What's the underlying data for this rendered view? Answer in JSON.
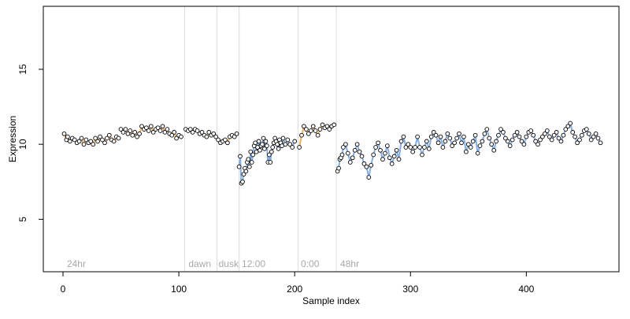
{
  "chart_data": {
    "type": "scatter",
    "title": "",
    "xlabel": "Sample index",
    "ylabel": "Expression",
    "xlim": [
      -17,
      480
    ],
    "ylim": [
      1.5,
      19.2
    ],
    "xticks": [
      0,
      100,
      200,
      300,
      400
    ],
    "yticks": [
      5,
      10,
      15
    ],
    "grid": false,
    "colors": {
      "point_fill": "#ffffff",
      "point_stroke": "#000000",
      "highlight_point_fill": "#f5a032",
      "fitted_line_orange": "#f0a040",
      "fitted_line_blue": "#6f9fdc",
      "divider": "#dcdcdc",
      "section_label": "#a8a8a8"
    },
    "dividers": [
      105,
      133,
      152,
      203,
      236
    ],
    "section_labels": [
      {
        "x": 2,
        "text": "24hr"
      },
      {
        "x": 107,
        "text": "dawn"
      },
      {
        "x": 133,
        "text": "dusk"
      },
      {
        "x": 153,
        "text": "12:00"
      },
      {
        "x": 204,
        "text": "0:00"
      },
      {
        "x": 238,
        "text": "48hr"
      }
    ],
    "series": [
      {
        "x": [
          1,
          3,
          4,
          6,
          8,
          10,
          12,
          14,
          16,
          18,
          20,
          22,
          24,
          26,
          28,
          30,
          32,
          34,
          36,
          38,
          40,
          42,
          44,
          46,
          48
        ],
        "y": [
          10.7,
          10.3,
          10.5,
          10.2,
          10.4,
          10.3,
          10.1,
          10.2,
          10.4,
          10.0,
          10.3,
          10.1,
          10.2,
          10.0,
          10.4,
          10.2,
          10.5,
          10.3,
          10.1,
          10.4,
          10.6,
          10.3,
          10.2,
          10.5,
          10.4
        ]
      },
      {
        "x": [
          50,
          52,
          54,
          56,
          58,
          60,
          62,
          64,
          66,
          68,
          70,
          72,
          74,
          76,
          78,
          80,
          82,
          84,
          86,
          88,
          90,
          92,
          94,
          96,
          98,
          100,
          102
        ],
        "y": [
          11.0,
          10.8,
          11.0,
          10.7,
          10.9,
          10.6,
          10.8,
          10.5,
          10.7,
          11.2,
          11.0,
          11.1,
          10.9,
          11.2,
          10.8,
          11.0,
          11.1,
          10.9,
          11.2,
          10.8,
          11.0,
          10.7,
          10.6,
          10.8,
          10.4,
          10.6,
          10.5
        ]
      },
      {
        "x": [
          106,
          108,
          110,
          112,
          114,
          116,
          118,
          120,
          122,
          124,
          126,
          128,
          130,
          132
        ],
        "y": [
          11.0,
          10.9,
          11.0,
          10.8,
          11.0,
          10.9,
          10.7,
          10.8,
          10.6,
          10.5,
          10.8,
          10.6,
          10.7,
          10.5
        ]
      },
      {
        "x": [
          134,
          136,
          138,
          140,
          142,
          144,
          146,
          148,
          150
        ],
        "y": [
          10.3,
          10.1,
          10.2,
          10.3,
          10.1,
          10.5,
          10.6,
          10.5,
          10.7
        ]
      },
      {
        "x": [
          152,
          153,
          154,
          155,
          156,
          157,
          158,
          159,
          160,
          161,
          162,
          163,
          164,
          165,
          166,
          167,
          168,
          169,
          170,
          171,
          172,
          173,
          174,
          175,
          176,
          177,
          178,
          179,
          180,
          181,
          182,
          183,
          184,
          185,
          186,
          187,
          188,
          189,
          190,
          192,
          194,
          196,
          198,
          200
        ],
        "y": [
          8.5,
          9.2,
          7.4,
          7.5,
          8.0,
          8.4,
          8.2,
          8.8,
          9.0,
          8.5,
          9.5,
          8.8,
          9.3,
          9.9,
          10.1,
          9.5,
          9.8,
          10.2,
          9.6,
          9.9,
          10.0,
          10.4,
          9.7,
          10.2,
          9.9,
          8.8,
          9.3,
          8.8,
          9.5,
          9.8,
          10.1,
          10.4,
          10.2,
          10.0,
          9.7,
          10.3,
          10.1,
          9.9,
          10.4,
          10.0,
          10.3,
          10.0,
          9.8,
          10.2
        ]
      },
      {
        "x": [
          204,
          206,
          208,
          210,
          212,
          214,
          216,
          218,
          220,
          222,
          224,
          226,
          228,
          230,
          232,
          234
        ],
        "y": [
          9.8,
          10.6,
          11.2,
          11.0,
          10.7,
          10.9,
          11.2,
          10.9,
          10.6,
          11.0,
          11.3,
          11.1,
          11.2,
          11.0,
          11.2,
          11.3
        ]
      },
      {
        "x": [
          237,
          238,
          239,
          240,
          241,
          242,
          244,
          246,
          248,
          250,
          252,
          254,
          256,
          258,
          260,
          262,
          264,
          266,
          268,
          270,
          272,
          274,
          276,
          278,
          280,
          282,
          284,
          286,
          288,
          290,
          292,
          294,
          296,
          298,
          300,
          302,
          304,
          306,
          308,
          310,
          312,
          314,
          316,
          318,
          320,
          322,
          324,
          326,
          328,
          330,
          332,
          334,
          336,
          338,
          340,
          342,
          344,
          346,
          348,
          350,
          352,
          354,
          356,
          358,
          360,
          362,
          364,
          366,
          368,
          370,
          372,
          374,
          376,
          378,
          380,
          382,
          384,
          386,
          388,
          390,
          392,
          394,
          396,
          398,
          400,
          402,
          404,
          406,
          408,
          410,
          412,
          414,
          416,
          418,
          420,
          422,
          424,
          426,
          428,
          430,
          432,
          434,
          436,
          438,
          440,
          442,
          444,
          446,
          448,
          450,
          452,
          454,
          456,
          458,
          460,
          462,
          464
        ],
        "y": [
          8.2,
          8.4,
          9.0,
          9.1,
          9.3,
          9.8,
          10.0,
          9.4,
          8.8,
          9.1,
          9.6,
          10.0,
          9.5,
          9.2,
          8.7,
          8.5,
          7.8,
          8.6,
          9.3,
          9.8,
          10.1,
          9.6,
          9.0,
          9.4,
          9.9,
          9.1,
          8.7,
          9.2,
          9.6,
          9.0,
          10.2,
          10.5,
          9.8,
          10.0,
          9.8,
          9.5,
          9.8,
          10.5,
          9.8,
          9.3,
          9.8,
          10.2,
          9.7,
          10.5,
          10.8,
          10.6,
          10.1,
          10.5,
          9.8,
          10.2,
          10.7,
          10.4,
          9.9,
          10.1,
          10.4,
          10.7,
          10.1,
          10.5,
          9.5,
          10.0,
          9.8,
          10.2,
          10.6,
          9.4,
          9.9,
          10.2,
          10.7,
          11.0,
          10.4,
          10.0,
          9.6,
          10.2,
          10.6,
          11.0,
          10.8,
          10.4,
          10.2,
          9.9,
          10.3,
          10.6,
          10.8,
          10.5,
          10.2,
          10.0,
          10.5,
          10.8,
          10.9,
          10.6,
          10.2,
          10.0,
          10.3,
          10.5,
          10.7,
          10.9,
          10.5,
          10.3,
          10.6,
          10.8,
          10.4,
          10.2,
          10.6,
          11.0,
          11.2,
          11.4,
          10.8,
          10.5,
          10.1,
          10.3,
          10.6,
          10.9,
          11.0,
          10.7,
          10.3,
          10.5,
          10.7,
          10.4,
          10.1
        ]
      }
    ]
  }
}
